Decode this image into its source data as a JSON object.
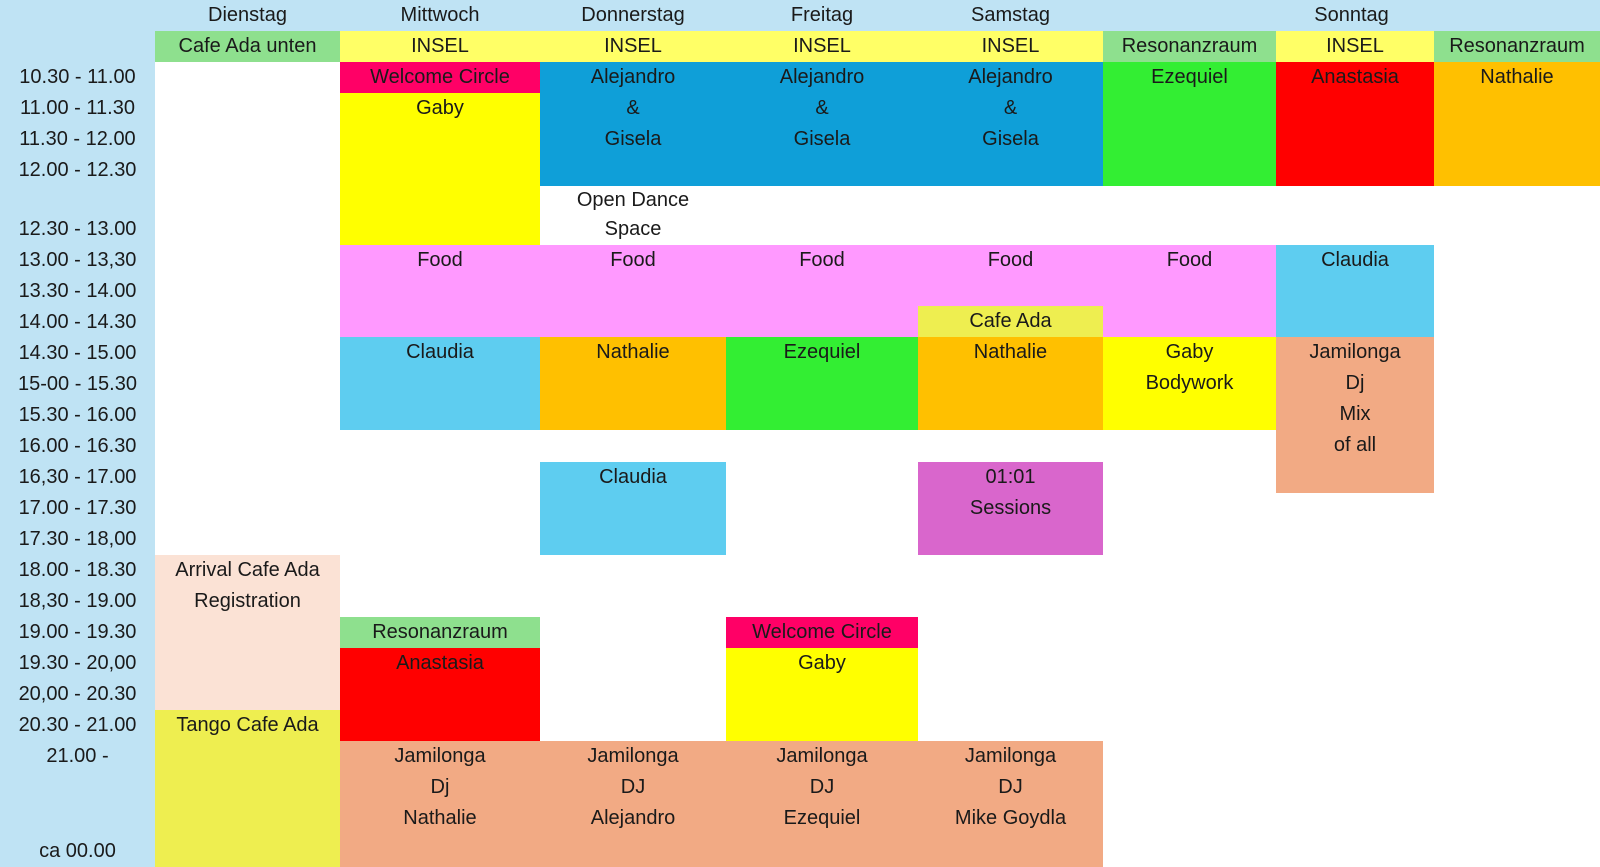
{
  "days": [
    "Dienstag",
    "Mittwoch",
    "Donnerstag",
    "Freitag",
    "Samstag",
    "Sonntag"
  ],
  "rooms": [
    "Cafe Ada unten",
    "INSEL",
    "INSEL",
    "INSEL",
    "INSEL",
    "Resonanzraum",
    "INSEL",
    "Resonanzraum"
  ],
  "times": [
    "10.30 - 11.00",
    "11.00 - 11.30",
    "11.30 - 12.00",
    "12.00 - 12.30",
    "12.30 - 13.00",
    "13.00 - 13,30",
    "13.30 - 14.00",
    "14.00 - 14.30",
    "14.30 - 15.00",
    "15-00 - 15.30",
    "15.30 - 16.00",
    "16.00 - 16.30",
    "16,30 - 17.00",
    "17.00 - 17.30",
    "17.30 - 18,00",
    "18.00 - 18.30",
    "18,30 - 19.00",
    "19.00 - 19.30",
    "19.30 - 20,00",
    "20,00 - 20.30",
    "20.30 - 21.00",
    "21.00 -",
    "ca 00.00"
  ],
  "colors": {
    "header_band": "#bfe3f4",
    "room_green": "#8ee08e",
    "insel_yellow": "#ffff66",
    "welcome_magenta": "#ff0066",
    "yellow": "#ffff00",
    "blue": "#0f9fd8",
    "green": "#33ee33",
    "red": "#ff0000",
    "orange": "#ffc000",
    "pink": "#ff99ff",
    "light_blue": "#5ecdf0",
    "salmon": "#f2aa84",
    "purple": "#d966cc",
    "pale_pink": "#fbe2d5",
    "lime_yellow": "#eeee50"
  },
  "events": [
    {
      "lines": [
        "Welcome Circle"
      ],
      "color": "welcome_magenta"
    },
    {
      "lines": [
        "Gaby"
      ],
      "color": "yellow"
    },
    {
      "lines": [
        "Alejandro",
        "&",
        "Gisela"
      ],
      "color": "blue"
    },
    {
      "lines": [
        "Alejandro",
        "&",
        "Gisela"
      ],
      "color": "blue"
    },
    {
      "lines": [
        "Alejandro",
        "&",
        "Gisela"
      ],
      "color": "blue"
    },
    {
      "lines": [
        "Ezequiel"
      ],
      "color": "green"
    },
    {
      "lines": [
        "Anastasia"
      ],
      "color": "red"
    },
    {
      "lines": [
        "Nathalie"
      ],
      "color": "orange"
    },
    {
      "lines": [
        "Open Dance",
        "Space"
      ],
      "color": "none"
    },
    {
      "lines": [
        "Food"
      ],
      "color": "pink"
    },
    {
      "lines": [
        "Food"
      ],
      "color": "pink"
    },
    {
      "lines": [
        "Food"
      ],
      "color": "pink"
    },
    {
      "lines": [
        "Food"
      ],
      "color": "pink"
    },
    {
      "lines": [
        "Cafe Ada"
      ],
      "color": "lime_yellow"
    },
    {
      "lines": [
        "Food"
      ],
      "color": "pink"
    },
    {
      "lines": [
        "Claudia"
      ],
      "color": "light_blue"
    },
    {
      "lines": [
        "Claudia"
      ],
      "color": "light_blue"
    },
    {
      "lines": [
        "Nathalie"
      ],
      "color": "orange"
    },
    {
      "lines": [
        "Ezequiel"
      ],
      "color": "green"
    },
    {
      "lines": [
        "Nathalie"
      ],
      "color": "orange"
    },
    {
      "lines": [
        "Gaby",
        "Bodywork"
      ],
      "color": "yellow"
    },
    {
      "lines": [
        "Jamilonga",
        "Dj",
        "Mix",
        "of all"
      ],
      "color": "salmon"
    },
    {
      "lines": [
        "Claudia"
      ],
      "color": "light_blue"
    },
    {
      "lines": [
        "01:01",
        "Sessions"
      ],
      "color": "purple"
    },
    {
      "lines": [
        "Arrival Cafe Ada",
        "Registration"
      ],
      "color": "pale_pink"
    },
    {
      "lines": [
        "Resonanzraum"
      ],
      "color": "room_green"
    },
    {
      "lines": [
        "Anastasia"
      ],
      "color": "red"
    },
    {
      "lines": [
        "Welcome Circle"
      ],
      "color": "welcome_magenta"
    },
    {
      "lines": [
        "Gaby"
      ],
      "color": "yellow"
    },
    {
      "lines": [
        "Tango Cafe Ada"
      ],
      "color": "lime_yellow"
    },
    {
      "lines": [
        "Jamilonga",
        "Dj",
        "Nathalie"
      ],
      "color": "salmon"
    },
    {
      "lines": [
        "Jamilonga",
        "DJ",
        "Alejandro"
      ],
      "color": "salmon"
    },
    {
      "lines": [
        "Jamilonga",
        "DJ",
        "Ezequiel"
      ],
      "color": "salmon"
    },
    {
      "lines": [
        "Jamilonga",
        "DJ",
        "Mike Goydla"
      ],
      "color": "salmon"
    }
  ]
}
